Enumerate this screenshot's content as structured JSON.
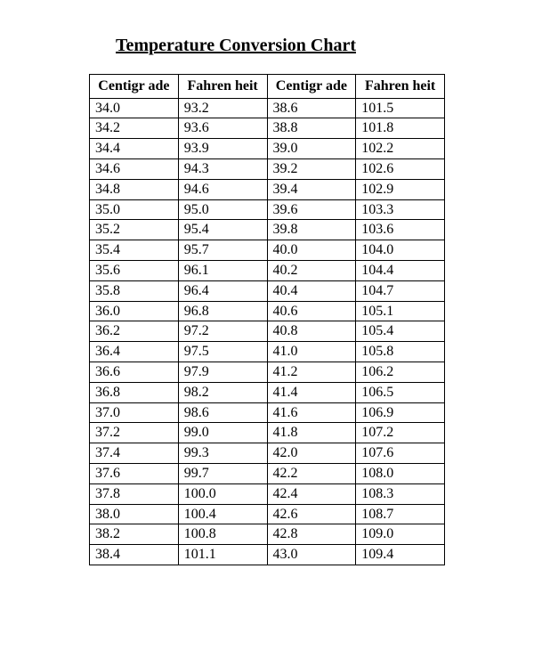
{
  "title": "Temperature Conversion Chart",
  "columns": [
    "Centigr ade",
    "Fahren heit",
    "Centigr ade",
    "Fahren heit"
  ],
  "rows": [
    [
      "34.0",
      "93.2",
      "38.6",
      "101.5"
    ],
    [
      "34.2",
      "93.6",
      "38.8",
      "101.8"
    ],
    [
      "34.4",
      "93.9",
      "39.0",
      "102.2"
    ],
    [
      "34.6",
      "94.3",
      "39.2",
      "102.6"
    ],
    [
      "34.8",
      "94.6",
      "39.4",
      "102.9"
    ],
    [
      "35.0",
      "95.0",
      "39.6",
      "103.3"
    ],
    [
      "35.2",
      "95.4",
      "39.8",
      "103.6"
    ],
    [
      "35.4",
      "95.7",
      "40.0",
      "104.0"
    ],
    [
      "35.6",
      "96.1",
      "40.2",
      "104.4"
    ],
    [
      "35.8",
      "96.4",
      "40.4",
      "104.7"
    ],
    [
      "36.0",
      "96.8",
      "40.6",
      "105.1"
    ],
    [
      "36.2",
      "97.2",
      "40.8",
      "105.4"
    ],
    [
      "36.4",
      "97.5",
      "41.0",
      "105.8"
    ],
    [
      "36.6",
      "97.9",
      "41.2",
      "106.2"
    ],
    [
      "36.8",
      "98.2",
      "41.4",
      "106.5"
    ],
    [
      "37.0",
      "98.6",
      "41.6",
      "106.9"
    ],
    [
      "37.2",
      "99.0",
      "41.8",
      "107.2"
    ],
    [
      "37.4",
      "99.3",
      "42.0",
      "107.6"
    ],
    [
      "37.6",
      "99.7",
      "42.2",
      "108.0"
    ],
    [
      "37.8",
      "100.0",
      "42.4",
      "108.3"
    ],
    [
      "38.0",
      "100.4",
      "42.6",
      "108.7"
    ],
    [
      "38.2",
      "100.8",
      "42.8",
      "109.0"
    ],
    [
      "38.4",
      "101.1",
      "43.0",
      "109.4"
    ]
  ],
  "column_widths": [
    "25%",
    "25%",
    "25%",
    "25%"
  ],
  "style": {
    "title_fontsize": 20,
    "cell_fontsize": 16,
    "border_color": "#000000",
    "background_color": "#ffffff",
    "text_color": "#000000",
    "font_family": "Times New Roman"
  }
}
